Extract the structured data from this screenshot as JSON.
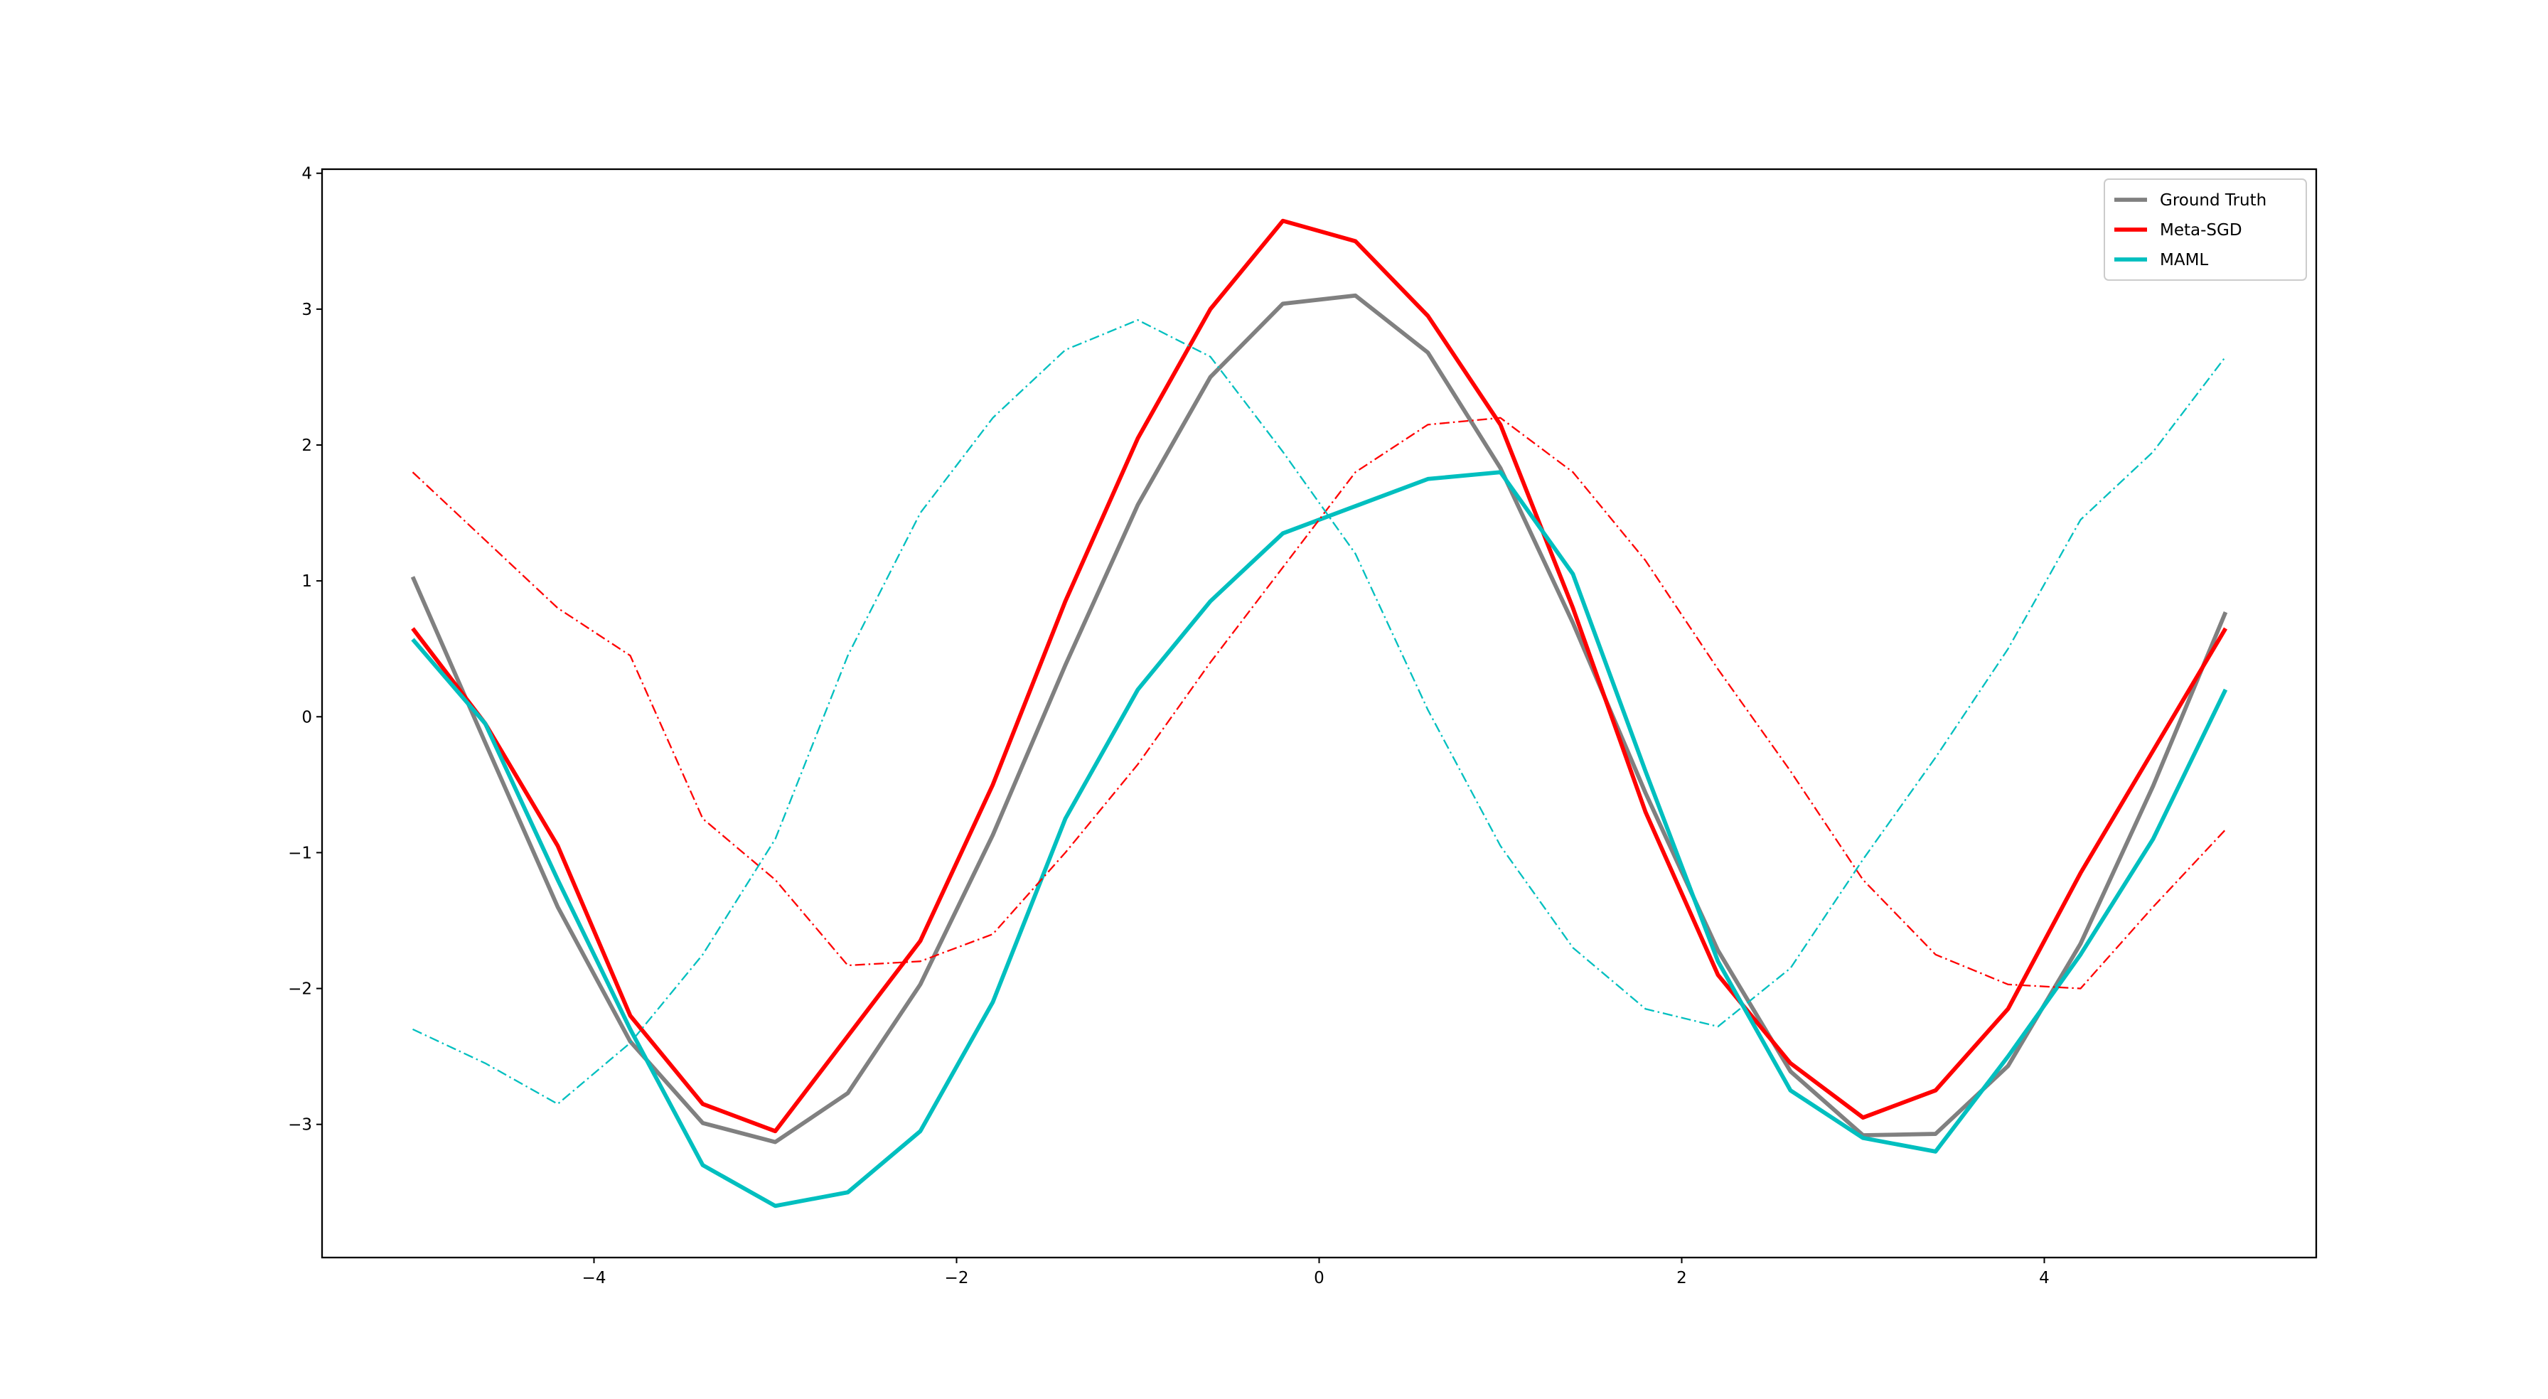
{
  "chart_data": {
    "type": "line",
    "x": [
      -5,
      -4.6,
      -4.2,
      -3.8,
      -3.4,
      -3.0,
      -2.6,
      -2.2,
      -1.8,
      -1.4,
      -1.0,
      -0.6,
      -0.2,
      0.2,
      0.6,
      1.0,
      1.4,
      1.8,
      2.2,
      2.6,
      3.0,
      3.4,
      3.8,
      4.2,
      4.6,
      5.0
    ],
    "series": [
      {
        "name": "Ground Truth",
        "color": "#808080",
        "style": "solid",
        "values": [
          1.03,
          -0.19,
          -1.4,
          -2.39,
          -2.99,
          -3.13,
          -2.77,
          -1.97,
          -0.87,
          0.38,
          1.56,
          2.5,
          3.04,
          3.1,
          2.68,
          1.83,
          0.69,
          -0.56,
          -1.72,
          -2.61,
          -3.08,
          -3.07,
          -2.57,
          -1.67,
          -0.51,
          0.77
        ]
      },
      {
        "name": "Meta-SGD",
        "color": "#ff0000",
        "style": "solid",
        "values": [
          0.65,
          -0.05,
          -0.95,
          -2.2,
          -2.85,
          -3.05,
          -2.35,
          -1.65,
          -0.5,
          0.85,
          2.05,
          3.0,
          3.65,
          3.5,
          2.95,
          2.15,
          0.8,
          -0.7,
          -1.9,
          -2.55,
          -2.95,
          -2.75,
          -2.15,
          -1.15,
          -0.25,
          0.65
        ]
      },
      {
        "name": "MAML",
        "color": "#00bfbf",
        "style": "solid",
        "values": [
          0.57,
          -0.05,
          -1.2,
          -2.3,
          -3.3,
          -3.6,
          -3.5,
          -3.05,
          -2.1,
          -0.75,
          0.2,
          0.85,
          1.35,
          1.55,
          1.75,
          1.8,
          1.05,
          -0.4,
          -1.8,
          -2.75,
          -3.1,
          -3.2,
          -2.5,
          -1.75,
          -0.9,
          0.2
        ]
      },
      {
        "color": "#ff0000",
        "style": "dashdot",
        "values": [
          1.8,
          1.3,
          0.8,
          0.45,
          -0.75,
          -1.2,
          -1.83,
          -1.8,
          -1.6,
          -1.0,
          -0.35,
          0.4,
          1.1,
          1.8,
          2.15,
          2.2,
          1.8,
          1.15,
          0.35,
          -0.4,
          -1.2,
          -1.75,
          -1.97,
          -2.0,
          -1.4,
          -0.83
        ]
      },
      {
        "color": "#00bfbf",
        "style": "dashdot",
        "values": [
          -2.3,
          -2.55,
          -2.85,
          -2.4,
          -1.75,
          -0.9,
          0.45,
          1.5,
          2.2,
          2.7,
          2.92,
          2.65,
          1.95,
          1.2,
          0.05,
          -0.95,
          -1.7,
          -2.15,
          -2.28,
          -1.85,
          -1.05,
          -0.3,
          0.5,
          1.45,
          1.95,
          2.65
        ]
      }
    ],
    "xlim": [
      -5.5,
      5.5
    ],
    "ylim": [
      -3.98,
      4.03
    ],
    "xticks": [
      {
        "value": -4,
        "label": "−4"
      },
      {
        "value": -2,
        "label": "−2"
      },
      0,
      2,
      4
    ],
    "yticks": [
      {
        "value": -3,
        "label": "−3"
      },
      {
        "value": -2,
        "label": "−2"
      },
      {
        "value": -1,
        "label": "−1"
      },
      0,
      1,
      2,
      3,
      4
    ],
    "legend": "upper right",
    "grid": false
  }
}
